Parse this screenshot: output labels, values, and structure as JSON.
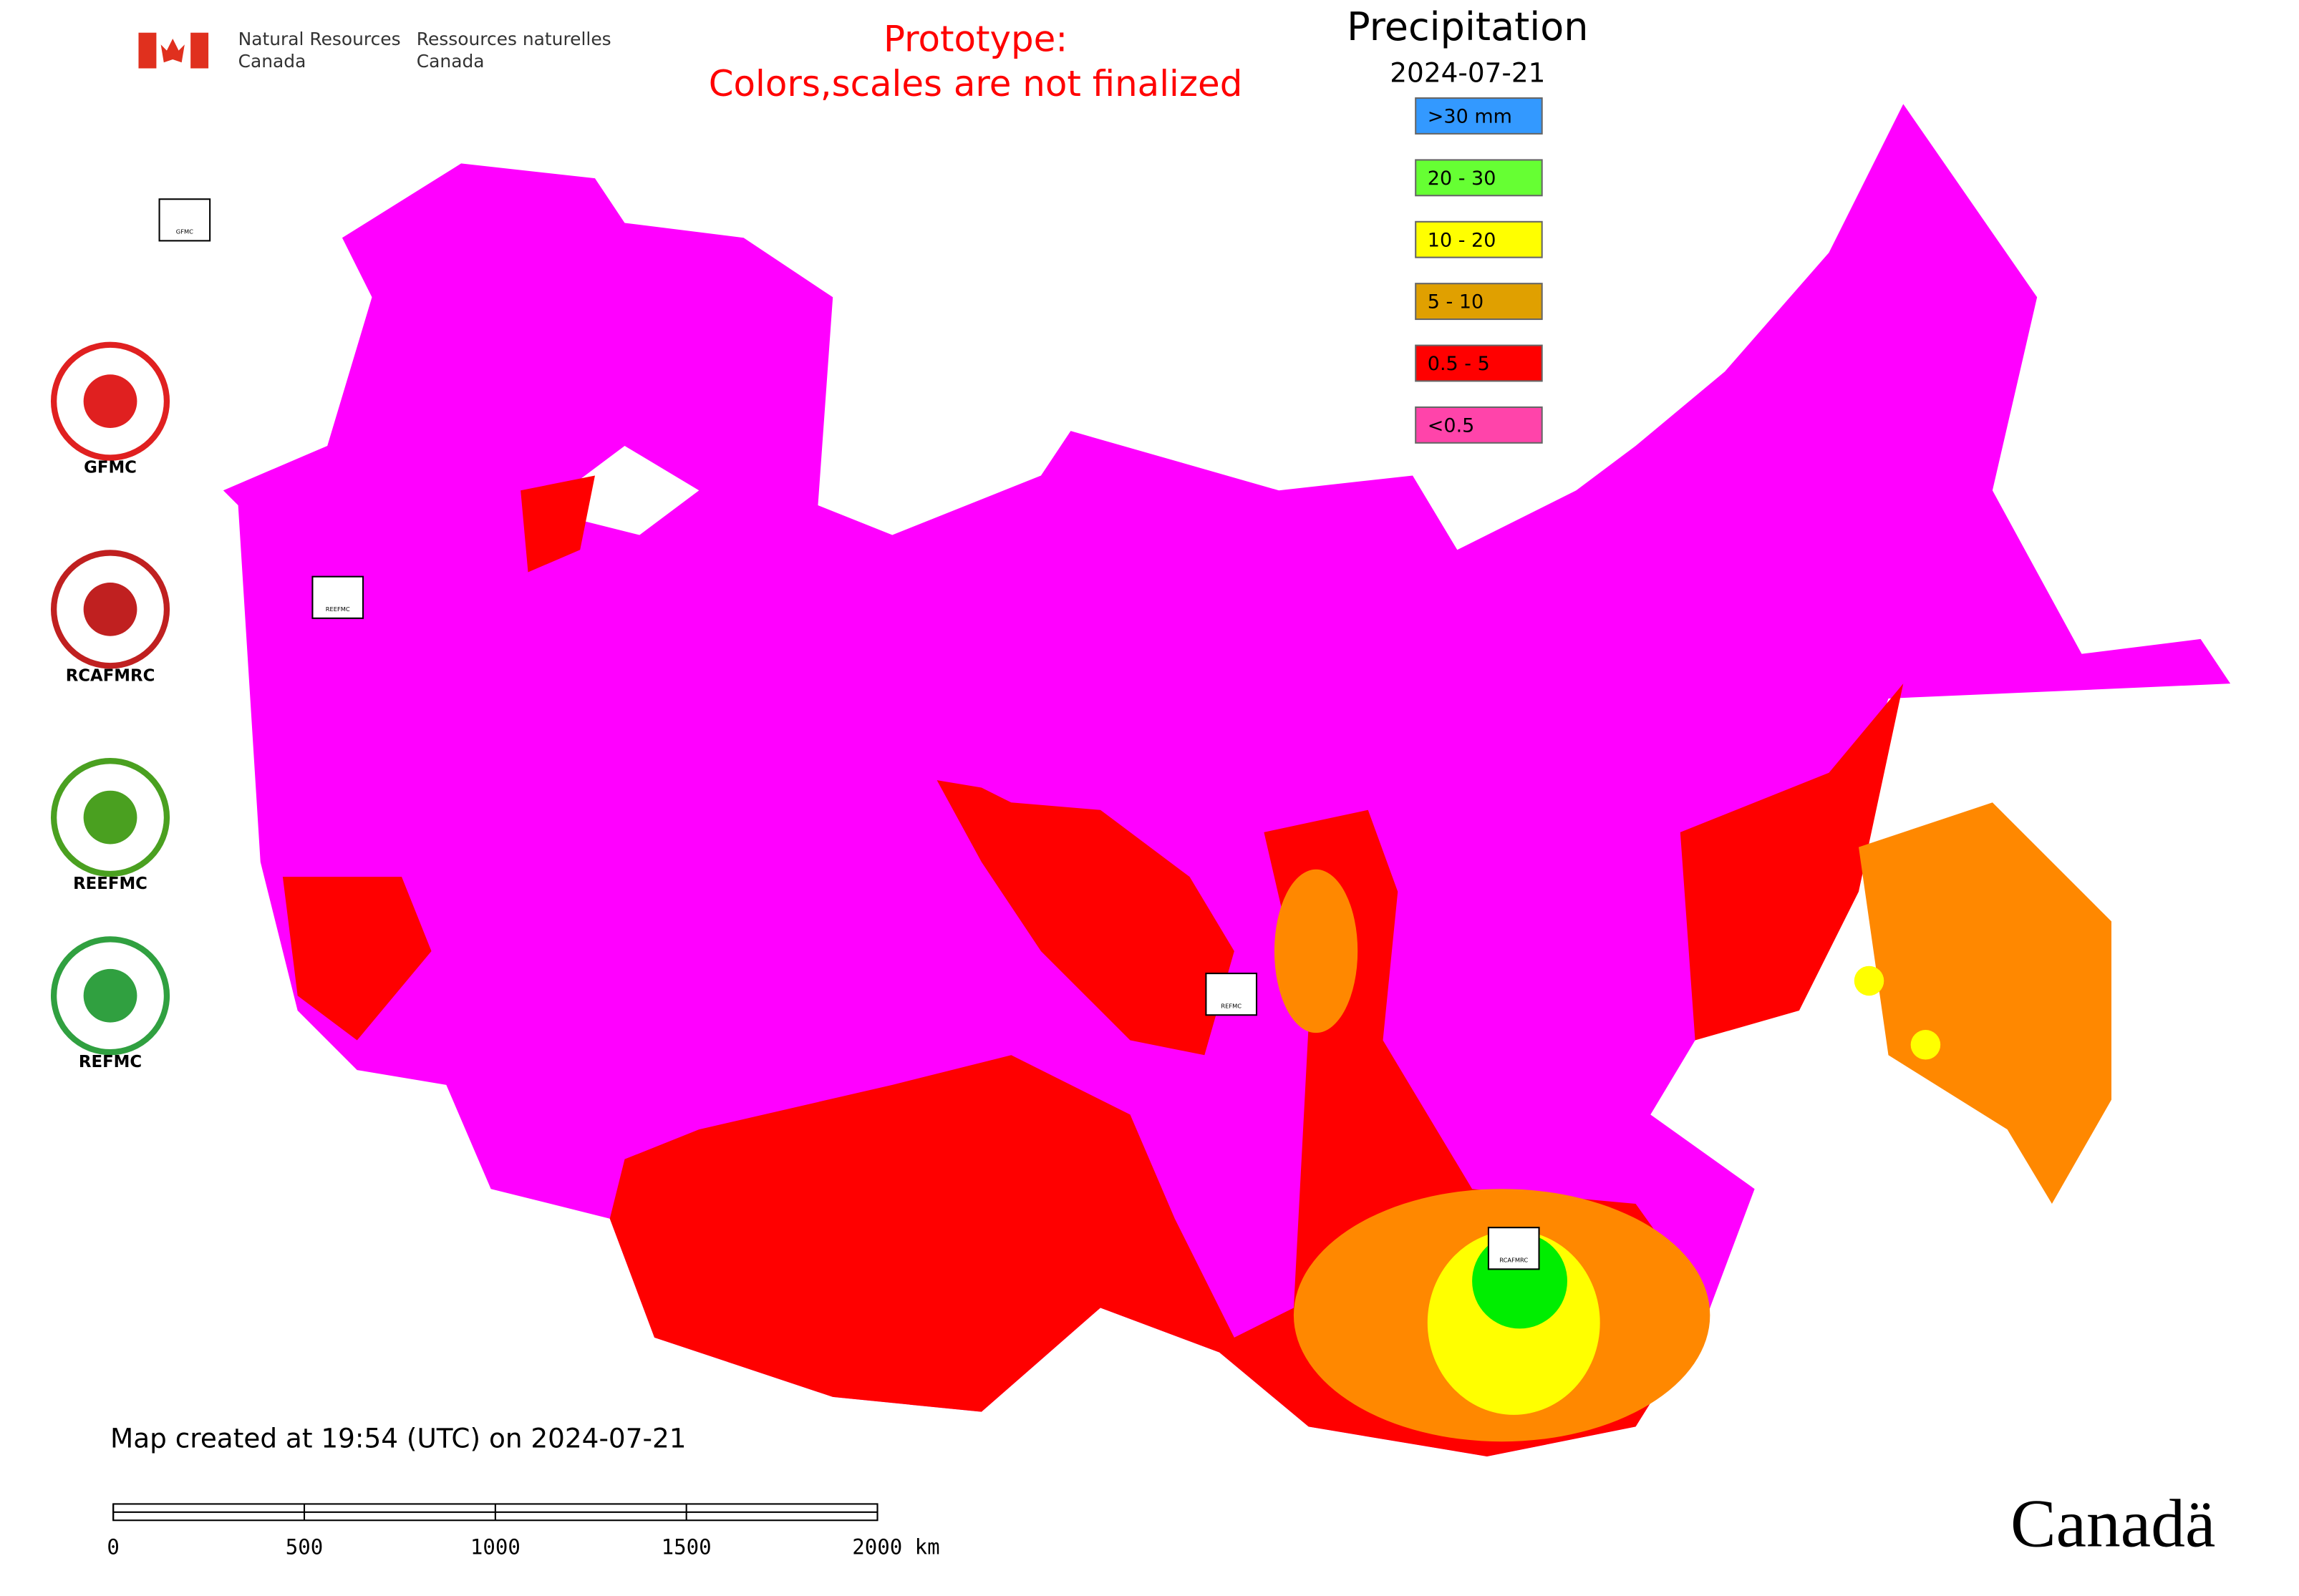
{
  "header": {
    "agency_en": [
      "Natural Resources",
      "Canada"
    ],
    "agency_fr": [
      "Ressources naturelles",
      "Canada"
    ],
    "notice": [
      "Prototype:",
      "Colors,scales are not finalized"
    ]
  },
  "legend": {
    "title": "Precipitation",
    "date": "2024-07-21",
    "items": [
      {
        "label": ">30 mm",
        "color": "#3399ff"
      },
      {
        "label": "20 - 30",
        "color": "#66ff33"
      },
      {
        "label": "10 - 20",
        "color": "#ffff00"
      },
      {
        "label": "5 - 10",
        "color": "#e0a000"
      },
      {
        "label": "0.5 - 5",
        "color": "#ff0000"
      },
      {
        "label": "<0.5",
        "color": "#ff44aa"
      }
    ]
  },
  "logos": [
    "GFMC",
    "RCAFMRC",
    "REEFMC",
    "REFMC"
  ],
  "map_labels": [
    "GFMC",
    "REEFMC",
    "REFMC",
    "RCAFMRC"
  ],
  "footer": {
    "created": "Map created at 19:54 (UTC) on 2024-07-21",
    "wordmark": "Canadä"
  },
  "scale_bar": {
    "labels": [
      "0",
      "500",
      "1000",
      "1500",
      "2000 km"
    ]
  }
}
